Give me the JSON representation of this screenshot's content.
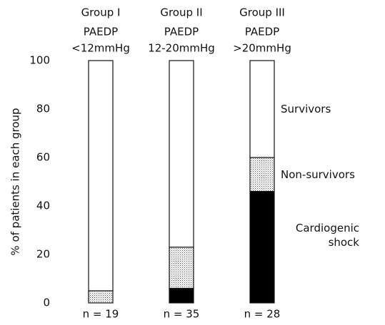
{
  "chart_data": {
    "type": "stacked_bar",
    "categories": [
      "Group I",
      "Group II",
      "Group III"
    ],
    "measure_label": "PAEDP",
    "pressure_ranges": [
      "<12mmHg",
      "12-20mmHg",
      ">20mmHg"
    ],
    "n_labels": [
      "n = 19",
      "n = 35",
      "n = 28"
    ],
    "y_label": "% of patients in each group",
    "ylim": [
      0,
      100
    ],
    "yticks": [
      0,
      20,
      40,
      60,
      80,
      100
    ],
    "series": [
      {
        "name": "Cardiogenic shock",
        "color": "#000000",
        "values": [
          0,
          6,
          46
        ]
      },
      {
        "name": "Non-survivors",
        "color": "stipple",
        "values": [
          5,
          17,
          14
        ]
      },
      {
        "name": "Survivors",
        "color": "#ffffff",
        "values": [
          95,
          77,
          40
        ]
      }
    ]
  }
}
